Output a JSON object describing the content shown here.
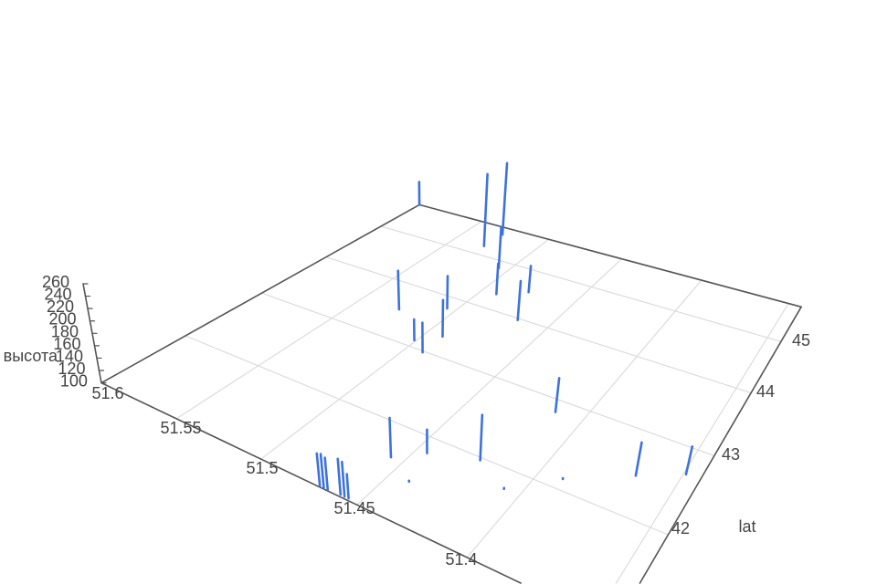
{
  "chart_data": {
    "type": "scatter3d",
    "mode": "vertical line segments",
    "x_axis": {
      "title": "",
      "tick_labels": [
        "51.6",
        "51.55",
        "51.5",
        "51.45",
        "51.4"
      ],
      "ticks": [
        51.6,
        51.55,
        51.5,
        51.45,
        51.4
      ],
      "range": [
        51.343,
        51.6
      ]
    },
    "y_axis": {
      "title": "lat",
      "tick_labels": [
        "42",
        "43",
        "44",
        "45"
      ],
      "ticks": [
        42,
        43,
        44,
        45
      ],
      "range": [
        41.08,
        45.8
      ]
    },
    "z_axis": {
      "title": "высота",
      "tick_labels": [
        "100",
        "120",
        "140",
        "160",
        "180",
        "200",
        "220",
        "240",
        "260"
      ],
      "ticks": [
        100,
        120,
        140,
        160,
        180,
        200,
        220,
        240,
        260
      ],
      "range": [
        100,
        260
      ]
    },
    "grid": true,
    "colors": {
      "line": "#3d72de",
      "grid": "#dcdcdc",
      "axis": "#555555",
      "text": "#444444"
    },
    "segments": [
      {
        "lon": 51.6,
        "lat": 45.8,
        "z": [
          100,
          150
        ]
      },
      {
        "lon": 51.529,
        "lat": 45.22,
        "z": [
          100,
          250
        ]
      },
      {
        "lon": 51.528,
        "lat": 45.61,
        "z": [
          100,
          251
        ]
      },
      {
        "lon": 51.506,
        "lat": 44.83,
        "z": [
          100,
          184
        ]
      },
      {
        "lon": 51.491,
        "lat": 44.31,
        "z": [
          100,
          160
        ]
      },
      {
        "lon": 51.477,
        "lat": 44.53,
        "z": [
          100,
          152
        ]
      },
      {
        "lon": 51.467,
        "lat": 43.97,
        "z": [
          100,
          175
        ]
      },
      {
        "lon": 51.526,
        "lat": 43.5,
        "z": [
          100,
          175
        ]
      },
      {
        "lon": 51.505,
        "lat": 43.78,
        "z": [
          100,
          163
        ]
      },
      {
        "lon": 51.491,
        "lat": 43.31,
        "z": [
          100,
          169
        ]
      },
      {
        "lon": 51.501,
        "lat": 43.11,
        "z": [
          100,
          139
        ]
      },
      {
        "lon": 51.491,
        "lat": 42.98,
        "z": [
          100,
          155
        ]
      },
      {
        "lon": 51.469,
        "lat": 41.09,
        "z": [
          100,
          154
        ]
      },
      {
        "lon": 51.467,
        "lat": 41.09,
        "z": [
          100,
          156
        ]
      },
      {
        "lon": 51.465,
        "lat": 41.09,
        "z": [
          100,
          153
        ]
      },
      {
        "lon": 51.459,
        "lat": 41.1,
        "z": [
          100,
          159
        ]
      },
      {
        "lon": 51.457,
        "lat": 41.1,
        "z": [
          100,
          157
        ]
      },
      {
        "lon": 51.455,
        "lat": 41.1,
        "z": [
          100,
          140
        ]
      },
      {
        "lon": 51.456,
        "lat": 41.63,
        "z": [
          100,
          167
        ]
      },
      {
        "lon": 51.445,
        "lat": 41.82,
        "z": [
          100,
          140
        ]
      },
      {
        "lon": 51.424,
        "lat": 41.97,
        "z": [
          100,
          177
        ]
      },
      {
        "lon": 51.413,
        "lat": 42.83,
        "z": [
          100,
          160
        ]
      },
      {
        "lon": 51.441,
        "lat": 41.48,
        "z": [
          100,
          101
        ]
      },
      {
        "lon": 51.407,
        "lat": 41.79,
        "z": [
          100,
          101
        ]
      },
      {
        "lon": 51.39,
        "lat": 42.12,
        "z": [
          100,
          101
        ]
      },
      {
        "lon": 51.366,
        "lat": 42.45,
        "z": [
          100,
          156
        ]
      },
      {
        "lon": 51.349,
        "lat": 42.67,
        "z": [
          100,
          147
        ]
      }
    ]
  }
}
